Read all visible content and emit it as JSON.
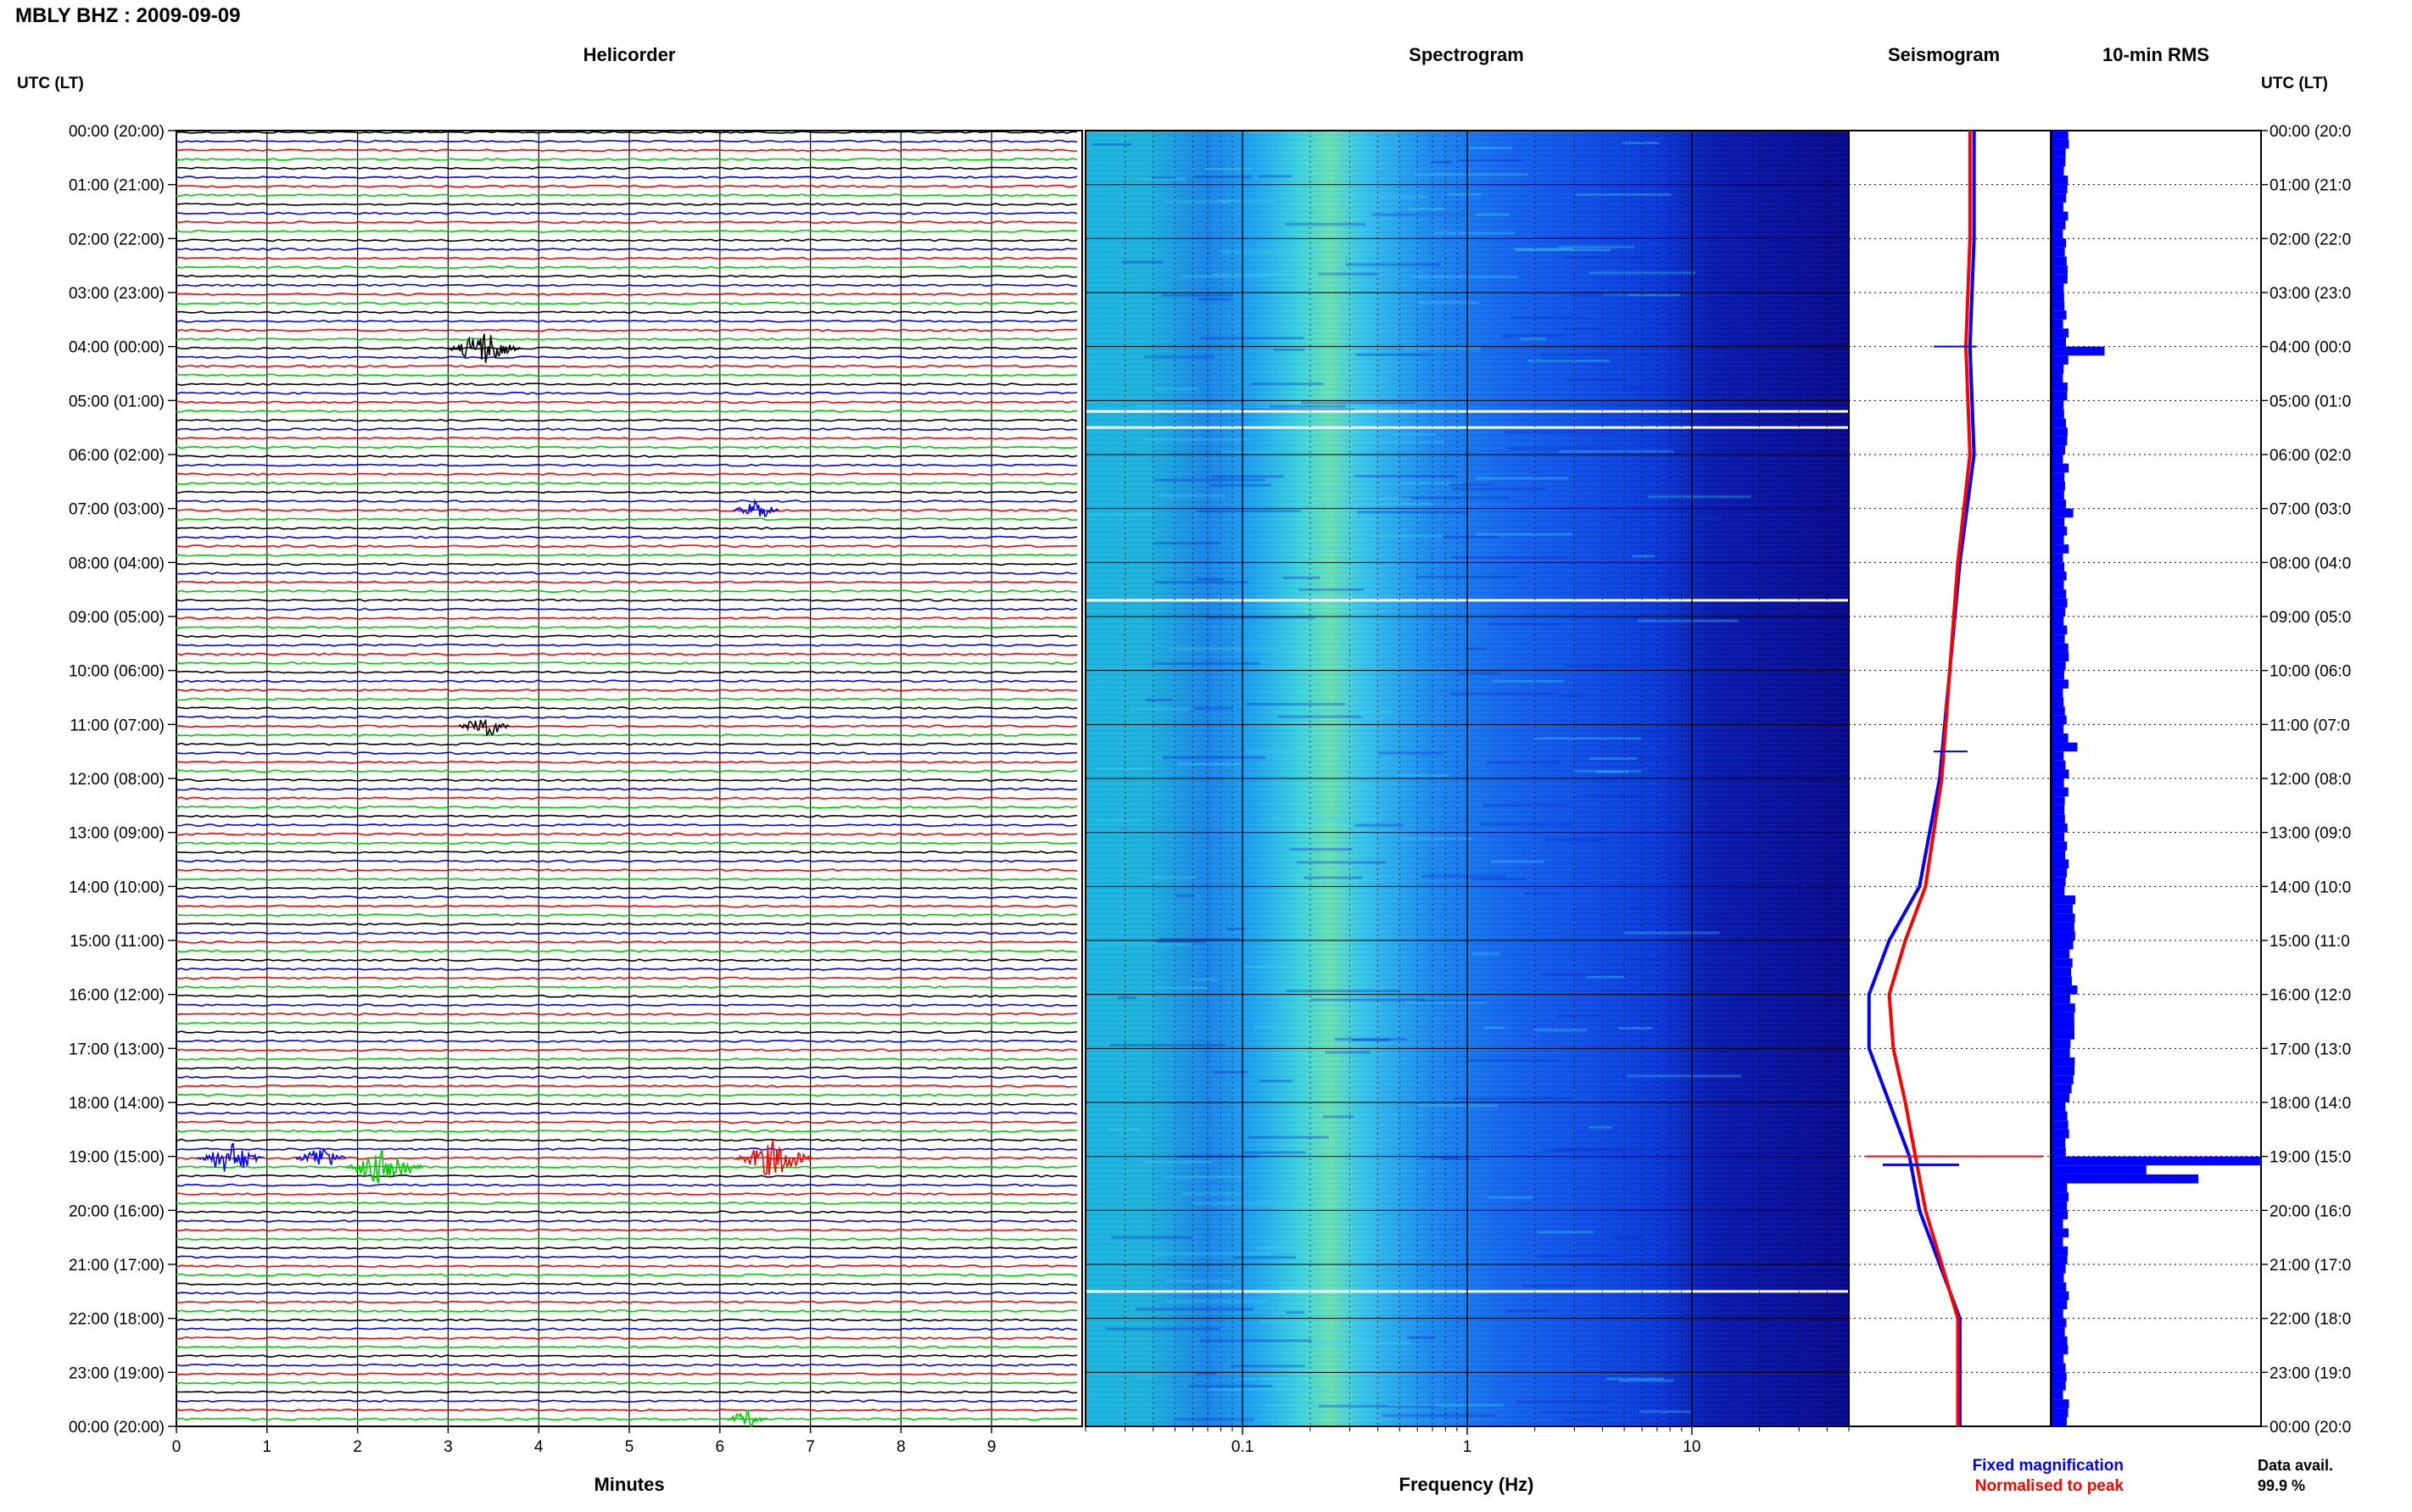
{
  "header": {
    "title": "MBLY BHZ : 2009-09-09"
  },
  "panels": {
    "helicorder": "Helicorder",
    "spectrogram": "Spectrogram",
    "seismogram": "Seismogram",
    "rms": "10-min RMS"
  },
  "axis_left_title": "UTC (LT)",
  "axis_right_title": "UTC (LT)",
  "time_labels": [
    "00:00 (20:00)",
    "01:00 (21:00)",
    "02:00 (22:00)",
    "03:00 (23:00)",
    "04:00 (00:00)",
    "05:00 (01:00)",
    "06:00 (02:00)",
    "07:00 (03:00)",
    "08:00 (04:00)",
    "09:00 (05:00)",
    "10:00 (06:00)",
    "11:00 (07:00)",
    "12:00 (08:00)",
    "13:00 (09:00)",
    "14:00 (10:00)",
    "15:00 (11:00)",
    "16:00 (12:00)",
    "17:00 (13:00)",
    "18:00 (14:00)",
    "19:00 (15:00)",
    "20:00 (16:00)",
    "21:00 (17:00)",
    "22:00 (18:00)",
    "23:00 (19:00)",
    "00:00 (20:00)"
  ],
  "right_time_labels": [
    "00:00 (20:0",
    "01:00 (21:0",
    "02:00 (22:0",
    "03:00 (23:0",
    "04:00 (00:0",
    "05:00 (01:0",
    "06:00 (02:0",
    "07:00 (03:0",
    "08:00 (04:0",
    "09:00 (05:0",
    "10:00 (06:0",
    "11:00 (07:0",
    "12:00 (08:0",
    "13:00 (09:0",
    "14:00 (10:0",
    "15:00 (11:0",
    "16:00 (12:0",
    "17:00 (13:0",
    "18:00 (14:0",
    "19:00 (15:0",
    "20:00 (16:0",
    "21:00 (17:0",
    "22:00 (18:0",
    "23:00 (19:0",
    "00:00 (20:0"
  ],
  "helicorder_xlabel": "Minutes",
  "helicorder_xticks": [
    "0",
    "1",
    "2",
    "3",
    "4",
    "5",
    "6",
    "7",
    "8",
    "9"
  ],
  "spectrogram_xlabel": "Frequency (Hz)",
  "spectrogram_xticks": [
    "0.1",
    "1",
    "10"
  ],
  "legend": {
    "fixed": "Fixed magnification",
    "normalised": "Normalised to peak",
    "fixed_color": "#0000ff",
    "normalised_color": "#ff0000"
  },
  "data_avail": {
    "label": "Data avail.",
    "value": "99.9 %"
  },
  "trace_colors": [
    "#000000",
    "#0000ff",
    "#ff0000",
    "#00cc00"
  ],
  "chart_data": [
    {
      "type": "line",
      "panel": "helicorder",
      "xlabel": "Minutes",
      "xlim": [
        0,
        10
      ],
      "traces_per_hour": 6,
      "hours": 24,
      "events": [
        {
          "hour": 4,
          "row": 0,
          "minute": 3.4,
          "amplitude": 0.9,
          "color": "#000000"
        },
        {
          "hour": 7,
          "row": 0,
          "minute": 6.4,
          "amplitude": 0.4,
          "color": "#0000ff"
        },
        {
          "hour": 11,
          "row": 0,
          "minute": 3.4,
          "amplitude": 0.5,
          "color": "#000000"
        },
        {
          "hour": 19,
          "row": 0,
          "minute": 0.6,
          "amplitude": 0.8,
          "color": "#0000ff"
        },
        {
          "hour": 19,
          "row": 0,
          "minute": 1.6,
          "amplitude": 0.5,
          "color": "#0000ff"
        },
        {
          "hour": 19,
          "row": 0,
          "minute": 6.6,
          "amplitude": 1.0,
          "color": "#ff0000"
        },
        {
          "hour": 19,
          "row": 1,
          "minute": 2.3,
          "amplitude": 1.0,
          "color": "#00cc00"
        },
        {
          "hour": 23,
          "row": 5,
          "minute": 6.3,
          "amplitude": 0.3,
          "color": "#00cc00"
        }
      ]
    },
    {
      "type": "heatmap",
      "panel": "spectrogram",
      "xlabel": "Frequency (Hz)",
      "x_scale": "log",
      "xlim": [
        0.02,
        50
      ],
      "ylim_hours": [
        0,
        24
      ],
      "colormap": "jet",
      "data_gaps_hours": [
        5.2,
        5.5,
        8.7,
        21.5
      ]
    },
    {
      "type": "line",
      "panel": "seismogram",
      "ylim_hours": [
        0,
        24
      ],
      "series": [
        {
          "name": "Fixed magnification",
          "color": "#0000ff",
          "hours": [
            0,
            2,
            4,
            6,
            8,
            10,
            12,
            14,
            15,
            16,
            17,
            18,
            19,
            20,
            21,
            22,
            23,
            24
          ],
          "values": [
            0.62,
            0.62,
            0.6,
            0.62,
            0.55,
            0.5,
            0.45,
            0.35,
            0.2,
            0.1,
            0.1,
            0.2,
            0.3,
            0.35,
            0.45,
            0.55,
            0.55,
            0.55
          ]
        },
        {
          "name": "Normalised to peak",
          "color": "#ff0000",
          "hours": [
            0,
            2,
            4,
            6,
            8,
            10,
            12,
            14,
            15,
            16,
            17,
            18,
            19,
            20,
            21,
            22,
            23,
            24
          ],
          "values": [
            0.6,
            0.6,
            0.58,
            0.6,
            0.54,
            0.5,
            0.46,
            0.38,
            0.28,
            0.2,
            0.22,
            0.28,
            0.33,
            0.38,
            0.46,
            0.54,
            0.54,
            0.54
          ]
        }
      ]
    },
    {
      "type": "bar",
      "panel": "rms",
      "orientation": "horizontal",
      "interval_minutes": 10,
      "peaks": [
        {
          "hour": 4.0,
          "value": 0.25
        },
        {
          "hour": 7.0,
          "value": 0.1
        },
        {
          "hour": 11.3,
          "value": 0.12
        },
        {
          "hour": 15.0,
          "value": 0.1
        },
        {
          "hour": 15.8,
          "value": 0.12
        },
        {
          "hour": 19.0,
          "value": 1.0
        },
        {
          "hour": 19.2,
          "value": 0.45
        },
        {
          "hour": 19.4,
          "value": 0.7
        }
      ]
    }
  ]
}
